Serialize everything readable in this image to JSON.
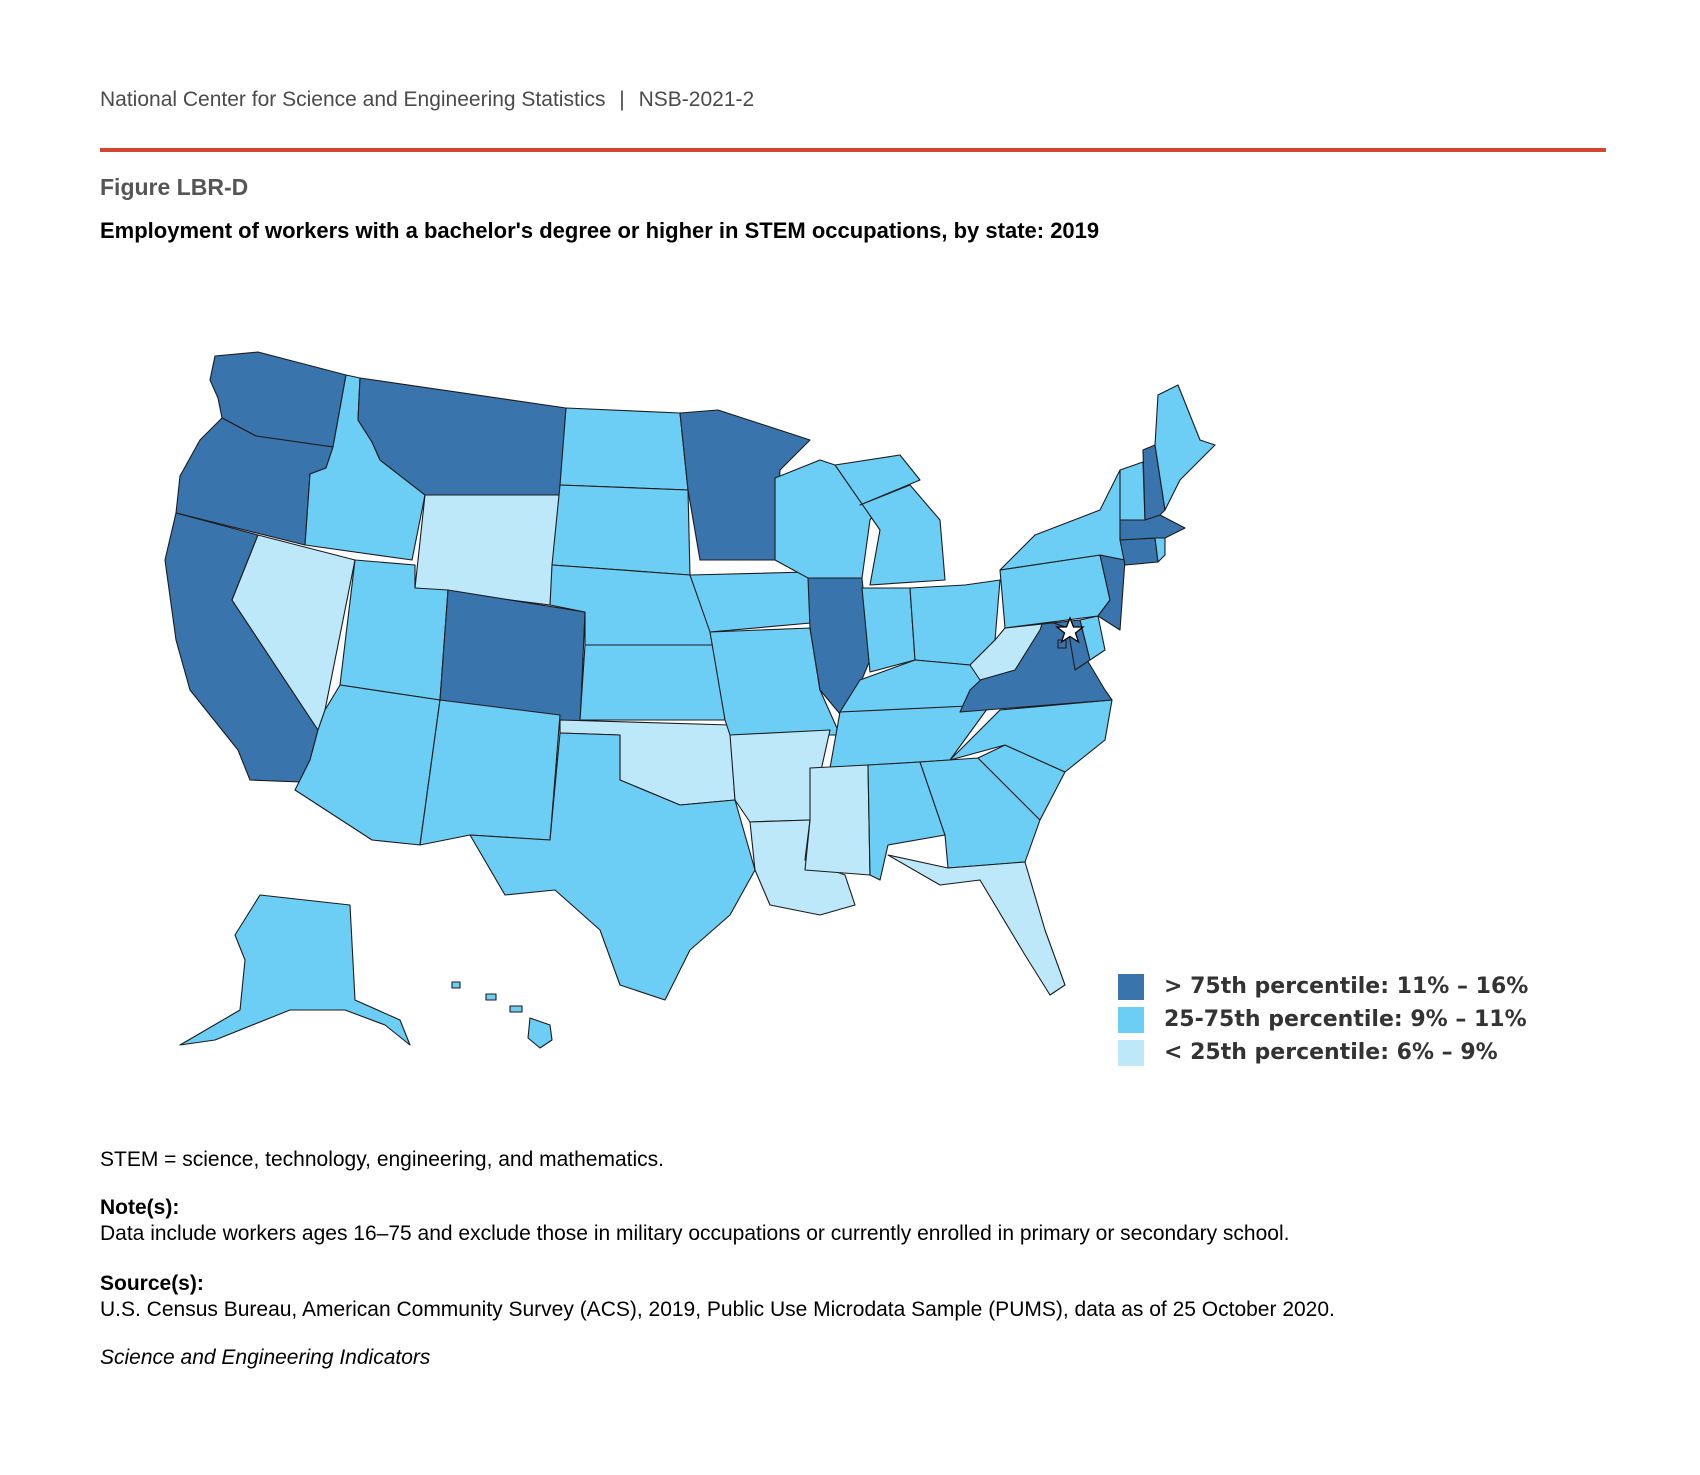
{
  "header": {
    "org": "National Center for Science and Engineering Statistics",
    "separator": "|",
    "report": "NSB-2021-2"
  },
  "figure": {
    "number": "Figure LBR-D",
    "title": "Employment of workers with a bachelor's degree or higher in STEM occupations, by state: 2019"
  },
  "colors": {
    "high": "#3a74ad",
    "mid": "#6ccdf5",
    "low": "#bde8fa",
    "rule": "#d2462e"
  },
  "legend": [
    {
      "key": "high",
      "label": "> 75th percentile: 11% – 16%"
    },
    {
      "key": "mid",
      "label": "25-75th percentile: 9% – 11%"
    },
    {
      "key": "low",
      "label": "< 25th percentile: 6% – 9%"
    }
  ],
  "map": {
    "title": "",
    "marker": "star-icon",
    "states": [
      {
        "state": "WA",
        "class": "high"
      },
      {
        "state": "OR",
        "class": "high"
      },
      {
        "state": "CA",
        "class": "high"
      },
      {
        "state": "ID",
        "class": "mid"
      },
      {
        "state": "NV",
        "class": "low"
      },
      {
        "state": "MT",
        "class": "high"
      },
      {
        "state": "WY",
        "class": "low"
      },
      {
        "state": "UT",
        "class": "mid"
      },
      {
        "state": "AZ",
        "class": "mid"
      },
      {
        "state": "CO",
        "class": "high"
      },
      {
        "state": "NM",
        "class": "mid"
      },
      {
        "state": "ND",
        "class": "mid"
      },
      {
        "state": "SD",
        "class": "mid"
      },
      {
        "state": "NE",
        "class": "mid"
      },
      {
        "state": "KS",
        "class": "mid"
      },
      {
        "state": "OK",
        "class": "low"
      },
      {
        "state": "TX",
        "class": "mid"
      },
      {
        "state": "MN",
        "class": "high"
      },
      {
        "state": "IA",
        "class": "mid"
      },
      {
        "state": "MO",
        "class": "mid"
      },
      {
        "state": "AR",
        "class": "low"
      },
      {
        "state": "LA",
        "class": "low"
      },
      {
        "state": "WI",
        "class": "mid"
      },
      {
        "state": "IL",
        "class": "high"
      },
      {
        "state": "MI",
        "class": "mid"
      },
      {
        "state": "IN",
        "class": "mid"
      },
      {
        "state": "OH",
        "class": "mid"
      },
      {
        "state": "KY",
        "class": "mid"
      },
      {
        "state": "TN",
        "class": "mid"
      },
      {
        "state": "MS",
        "class": "low"
      },
      {
        "state": "AL",
        "class": "mid"
      },
      {
        "state": "GA",
        "class": "mid"
      },
      {
        "state": "FL",
        "class": "low"
      },
      {
        "state": "SC",
        "class": "mid"
      },
      {
        "state": "NC",
        "class": "mid"
      },
      {
        "state": "VA",
        "class": "high"
      },
      {
        "state": "WV",
        "class": "low"
      },
      {
        "state": "MD",
        "class": "high"
      },
      {
        "state": "DE",
        "class": "mid"
      },
      {
        "state": "DC",
        "class": "high"
      },
      {
        "state": "PA",
        "class": "mid"
      },
      {
        "state": "NJ",
        "class": "high"
      },
      {
        "state": "NY",
        "class": "mid"
      },
      {
        "state": "CT",
        "class": "high"
      },
      {
        "state": "RI",
        "class": "mid"
      },
      {
        "state": "MA",
        "class": "high"
      },
      {
        "state": "VT",
        "class": "mid"
      },
      {
        "state": "NH",
        "class": "high"
      },
      {
        "state": "ME",
        "class": "mid"
      },
      {
        "state": "AK",
        "class": "mid"
      },
      {
        "state": "HI",
        "class": "mid"
      }
    ]
  },
  "footnotes": {
    "abbreviation": "STEM = science, technology, engineering, and mathematics.",
    "notes_heading": "Note(s):",
    "notes_text": "Data include workers ages 16–75 and exclude those in military occupations or currently enrolled in primary or secondary school.",
    "sources_heading": "Source(s):",
    "sources_text": "U.S. Census Bureau, American Community Survey (ACS), 2019, Public Use Microdata Sample (PUMS), data as of 25 October 2020.",
    "publication": "Science and Engineering Indicators"
  }
}
